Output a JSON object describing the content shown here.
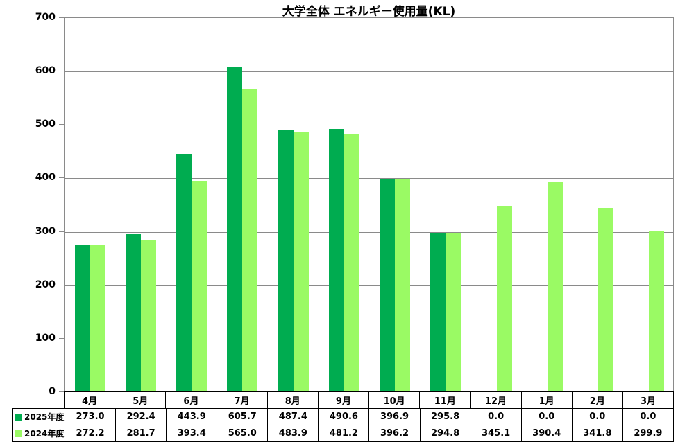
{
  "chart_data": {
    "type": "bar",
    "title": "大学全体 エネルギー使用量(KL)",
    "categories": [
      "4月",
      "5月",
      "6月",
      "7月",
      "8月",
      "9月",
      "10月",
      "11月",
      "12月",
      "1月",
      "2月",
      "3月"
    ],
    "series": [
      {
        "name": "2025年度",
        "color": "#00AC50",
        "values": [
          273.0,
          292.4,
          443.9,
          605.7,
          487.4,
          490.6,
          396.9,
          295.8,
          0.0,
          0.0,
          0.0,
          0.0
        ]
      },
      {
        "name": "2024年度",
        "color": "#9AFA64",
        "values": [
          272.2,
          281.7,
          393.4,
          565.0,
          483.9,
          481.2,
          396.2,
          294.8,
          345.1,
          390.4,
          341.8,
          299.9
        ]
      }
    ],
    "ylim": [
      0,
      700
    ],
    "ytick_interval": 100,
    "ytick_labels": [
      "0",
      "100",
      "200",
      "300",
      "400",
      "500",
      "600",
      "700"
    ],
    "value_decimals": 1,
    "grid": true,
    "legend_position": "table-rows-left",
    "xlabel": "",
    "ylabel": ""
  },
  "colors": {
    "grid": "#8a8a8a",
    "table_border": "#000000",
    "text": "#000000",
    "background": "#ffffff"
  }
}
